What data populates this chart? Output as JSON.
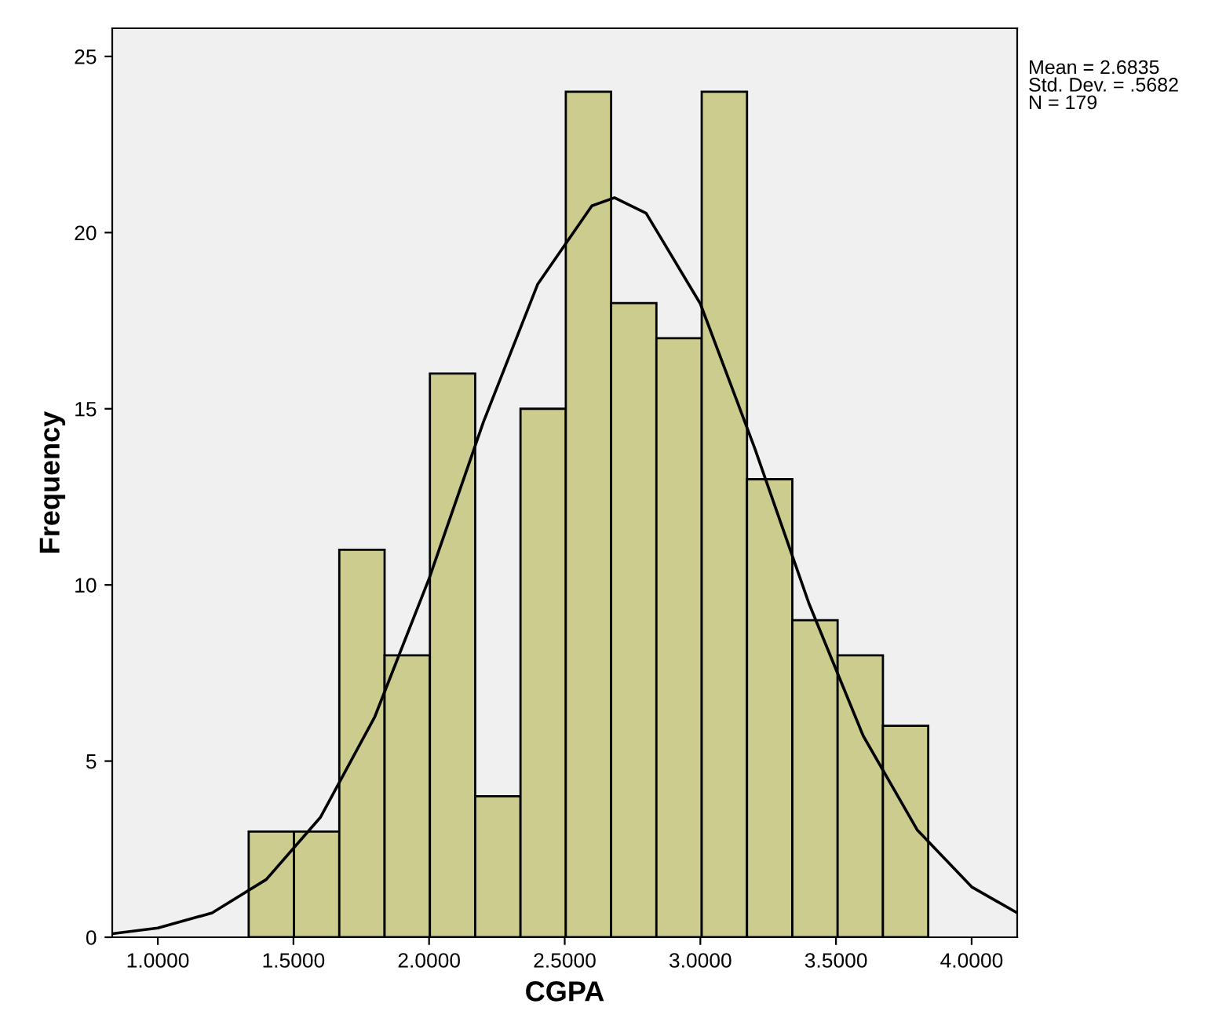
{
  "chart_data": {
    "type": "histogram",
    "xlabel": "CGPA",
    "ylabel": "Frequency",
    "annotations": [
      "Mean = 2.6835\nStd. Dev. = .5682\nN = 179"
    ],
    "series": [
      {
        "color": "#cccc8f",
        "bins": [
          1.335,
          1.502,
          1.669,
          1.836,
          2.003,
          2.17,
          2.337,
          2.504,
          2.671,
          2.838,
          3.005,
          3.172,
          3.339,
          3.506,
          3.673,
          3.84
        ],
        "values": [
          3,
          3,
          11,
          8,
          16,
          4,
          15,
          24,
          18,
          17,
          24,
          13,
          9,
          8,
          6
        ]
      },
      {
        "type": "line",
        "color": "#000000",
        "x": [
          0.832,
          1.0,
          1.2,
          1.4,
          1.6,
          1.8,
          2.0,
          2.2,
          2.4,
          2.6,
          2.6835,
          2.8,
          3.0,
          3.2,
          3.4,
          3.6,
          3.8,
          4.0,
          4.168
        ],
        "values": [
          0.1,
          0.26,
          0.69,
          1.64,
          3.41,
          6.26,
          10.18,
          14.62,
          18.53,
          20.76,
          20.99,
          20.55,
          17.98,
          13.89,
          9.48,
          5.72,
          3.04,
          1.43,
          0.69
        ]
      }
    ],
    "xlim": [
      0.832,
      4.168
    ],
    "ylim": [
      0,
      25.8
    ],
    "xticks": [
      {
        "value": 1,
        "label": "1.0000"
      },
      {
        "value": 1.5,
        "label": "1.5000"
      },
      {
        "value": 2,
        "label": "2.0000"
      },
      {
        "value": 2.5,
        "label": "2.5000"
      },
      {
        "value": 3,
        "label": "3.0000"
      },
      {
        "value": 3.5,
        "label": "3.5000"
      },
      {
        "value": 4,
        "label": "4.0000"
      }
    ],
    "yticks": [
      0,
      5,
      10,
      15,
      20,
      25
    ],
    "grid": false
  }
}
